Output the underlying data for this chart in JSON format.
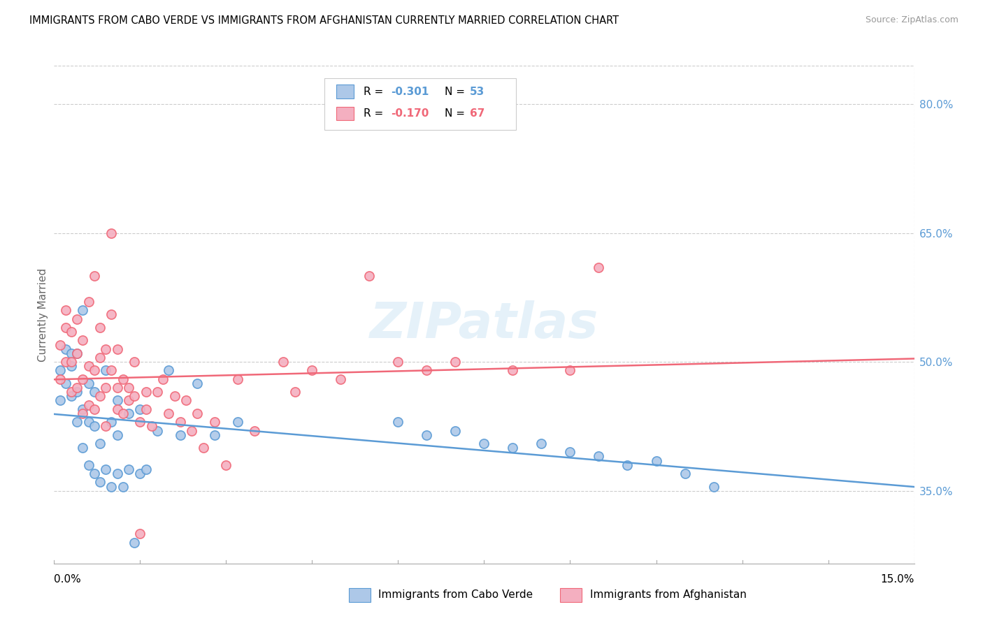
{
  "title": "IMMIGRANTS FROM CABO VERDE VS IMMIGRANTS FROM AFGHANISTAN CURRENTLY MARRIED CORRELATION CHART",
  "source": "Source: ZipAtlas.com",
  "ylabel": "Currently Married",
  "x_min": 0.0,
  "x_max": 0.15,
  "y_min": 0.265,
  "y_max": 0.845,
  "y_ticks": [
    0.35,
    0.5,
    0.65,
    0.8
  ],
  "y_tick_labels": [
    "35.0%",
    "50.0%",
    "65.0%",
    "80.0%"
  ],
  "cabo_color": "#adc8e8",
  "afgh_color": "#f4afc0",
  "cabo_edge": "#5b9bd5",
  "afgh_edge": "#f06878",
  "cabo_line": "#5b9bd5",
  "afgh_line": "#f06878",
  "text_blue": "#5b9bd5",
  "text_pink": "#f06878",
  "watermark": "ZIPatlas",
  "bg": "#ffffff",
  "grid_color": "#cccccc",
  "cabo_label": "Immigrants from Cabo Verde",
  "afgh_label": "Immigrants from Afghanistan",
  "cabo_x": [
    0.001,
    0.001,
    0.002,
    0.002,
    0.003,
    0.003,
    0.003,
    0.004,
    0.004,
    0.004,
    0.005,
    0.005,
    0.005,
    0.006,
    0.006,
    0.006,
    0.007,
    0.007,
    0.007,
    0.008,
    0.008,
    0.009,
    0.009,
    0.01,
    0.01,
    0.011,
    0.011,
    0.011,
    0.012,
    0.013,
    0.013,
    0.014,
    0.015,
    0.015,
    0.016,
    0.018,
    0.02,
    0.022,
    0.025,
    0.028,
    0.032,
    0.06,
    0.065,
    0.07,
    0.075,
    0.08,
    0.085,
    0.09,
    0.095,
    0.1,
    0.105,
    0.11,
    0.115
  ],
  "cabo_y": [
    0.455,
    0.49,
    0.475,
    0.515,
    0.46,
    0.495,
    0.51,
    0.43,
    0.465,
    0.51,
    0.4,
    0.445,
    0.56,
    0.38,
    0.43,
    0.475,
    0.37,
    0.425,
    0.465,
    0.36,
    0.405,
    0.375,
    0.49,
    0.355,
    0.43,
    0.37,
    0.415,
    0.455,
    0.355,
    0.375,
    0.44,
    0.29,
    0.37,
    0.445,
    0.375,
    0.42,
    0.49,
    0.415,
    0.475,
    0.415,
    0.43,
    0.43,
    0.415,
    0.42,
    0.405,
    0.4,
    0.405,
    0.395,
    0.39,
    0.38,
    0.385,
    0.37,
    0.355
  ],
  "afgh_x": [
    0.001,
    0.001,
    0.002,
    0.002,
    0.002,
    0.003,
    0.003,
    0.003,
    0.004,
    0.004,
    0.004,
    0.005,
    0.005,
    0.005,
    0.006,
    0.006,
    0.006,
    0.007,
    0.007,
    0.007,
    0.008,
    0.008,
    0.008,
    0.009,
    0.009,
    0.009,
    0.01,
    0.01,
    0.01,
    0.011,
    0.011,
    0.011,
    0.012,
    0.012,
    0.013,
    0.013,
    0.014,
    0.014,
    0.015,
    0.015,
    0.016,
    0.016,
    0.017,
    0.018,
    0.019,
    0.02,
    0.021,
    0.022,
    0.023,
    0.024,
    0.025,
    0.026,
    0.028,
    0.03,
    0.032,
    0.035,
    0.04,
    0.042,
    0.045,
    0.05,
    0.055,
    0.06,
    0.065,
    0.07,
    0.08,
    0.09,
    0.095
  ],
  "afgh_y": [
    0.48,
    0.52,
    0.5,
    0.54,
    0.56,
    0.465,
    0.5,
    0.535,
    0.47,
    0.51,
    0.55,
    0.44,
    0.48,
    0.525,
    0.45,
    0.495,
    0.57,
    0.445,
    0.49,
    0.6,
    0.46,
    0.505,
    0.54,
    0.425,
    0.47,
    0.515,
    0.49,
    0.555,
    0.65,
    0.445,
    0.47,
    0.515,
    0.44,
    0.48,
    0.455,
    0.47,
    0.46,
    0.5,
    0.43,
    0.3,
    0.445,
    0.465,
    0.425,
    0.465,
    0.48,
    0.44,
    0.46,
    0.43,
    0.455,
    0.42,
    0.44,
    0.4,
    0.43,
    0.38,
    0.48,
    0.42,
    0.5,
    0.465,
    0.49,
    0.48,
    0.6,
    0.5,
    0.49,
    0.5,
    0.49,
    0.49,
    0.61
  ]
}
